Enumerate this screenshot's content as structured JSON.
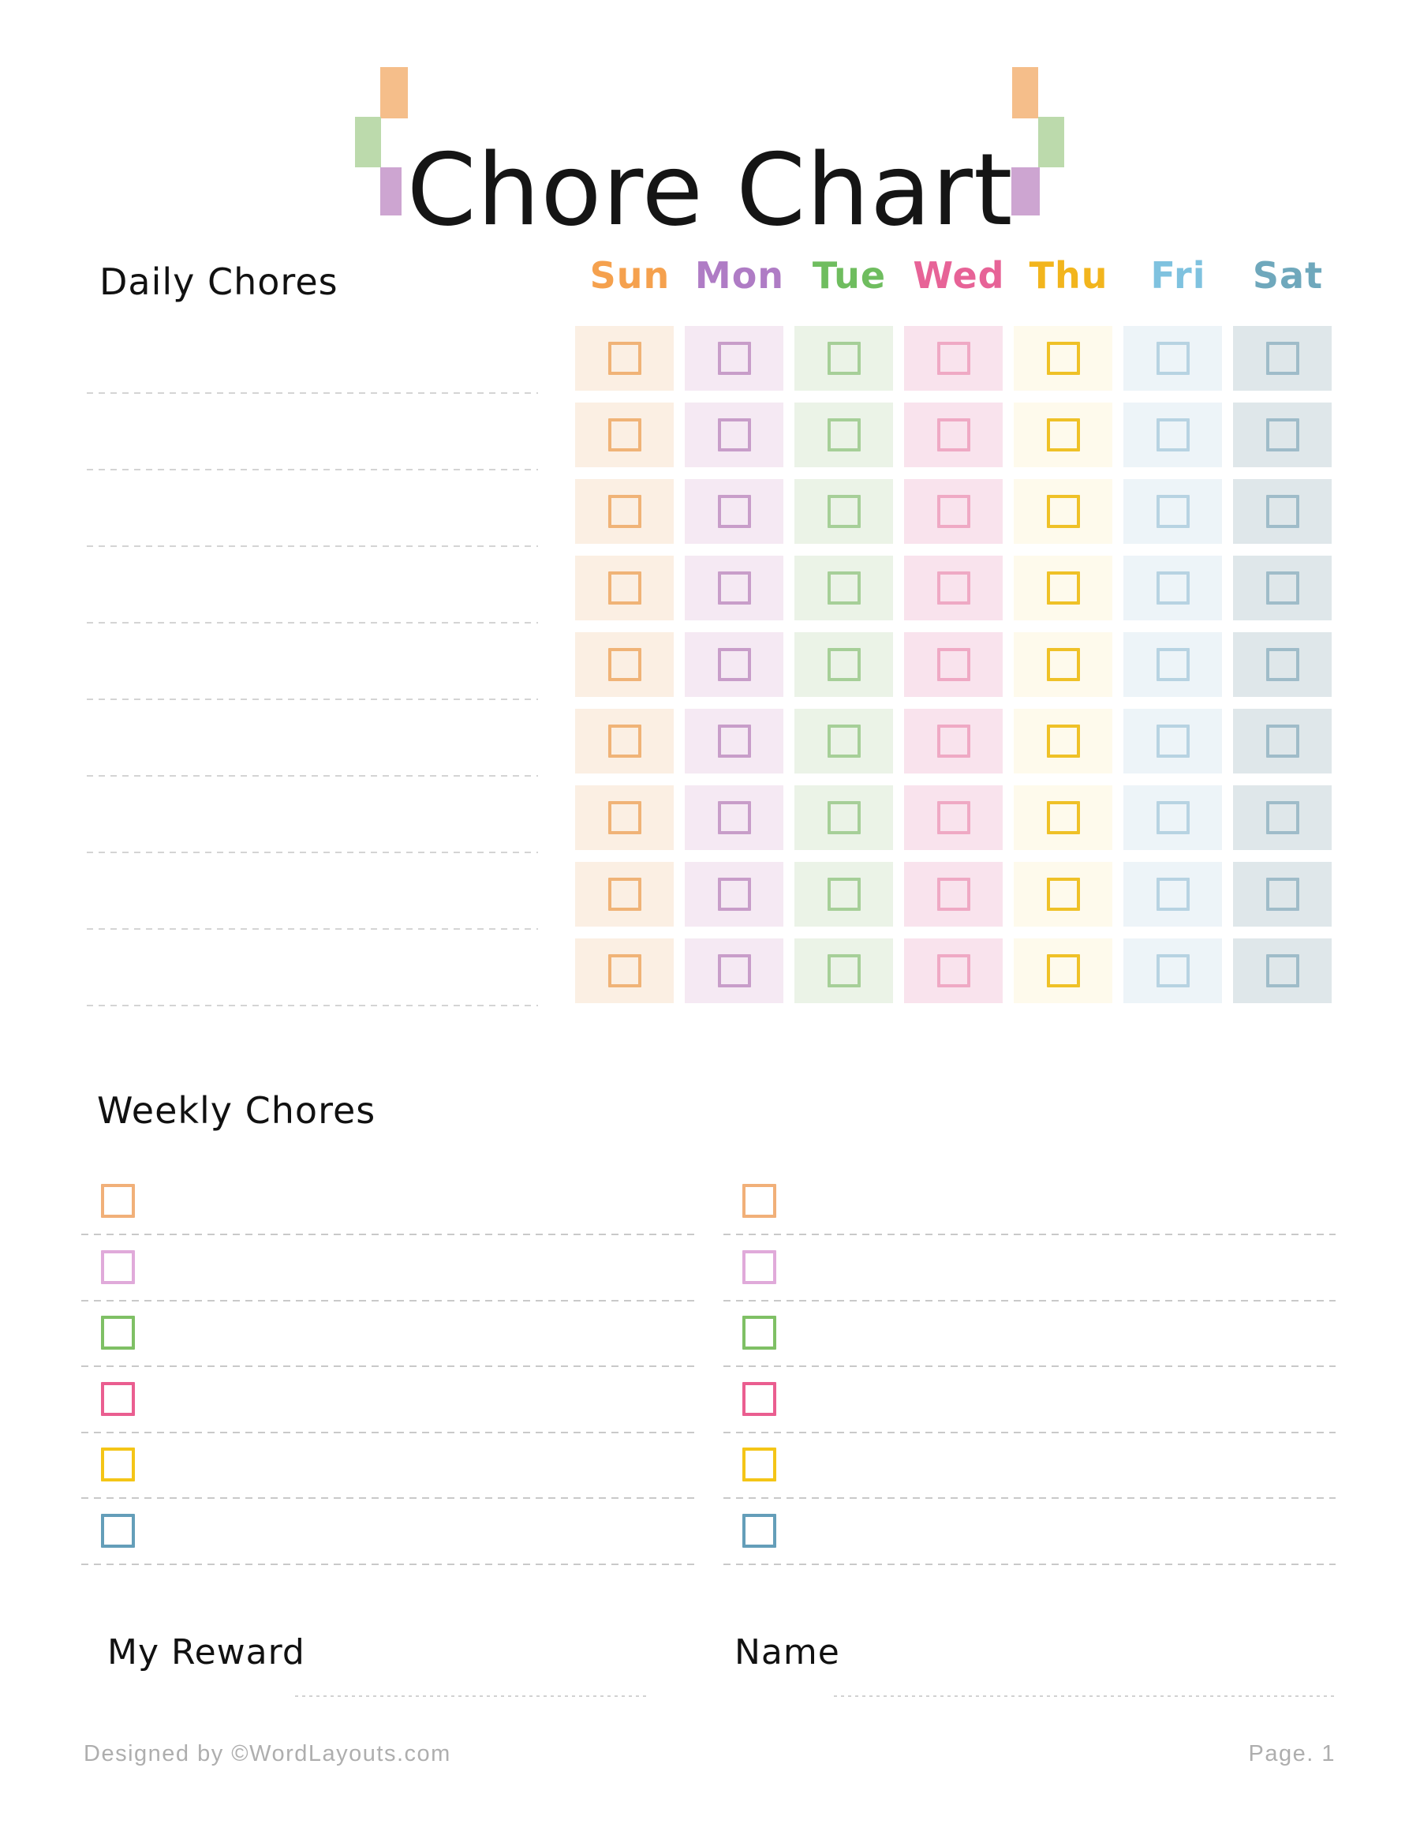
{
  "page": {
    "title": "Chore Chart",
    "footer_left": "Designed by ©WordLayouts.com",
    "footer_right": "Page. 1"
  },
  "decoration": {
    "orange": "#f5be8a",
    "green": "#bcdaac",
    "purple": "#cda5d1"
  },
  "daily": {
    "heading": "Daily Chores",
    "rows": 9,
    "line_count": 9,
    "days": [
      {
        "label": "Sun",
        "label_color": "#f5a14e",
        "cell_bg": "#fbefe3",
        "box_color": "#f0b377"
      },
      {
        "label": "Mon",
        "label_color": "#af7cc5",
        "cell_bg": "#f5e9f3",
        "box_color": "#c89dc9"
      },
      {
        "label": "Tue",
        "label_color": "#6fbd5f",
        "cell_bg": "#ebf3e7",
        "box_color": "#a6cf98"
      },
      {
        "label": "Wed",
        "label_color": "#e76397",
        "cell_bg": "#f9e3ed",
        "box_color": "#efa9c4"
      },
      {
        "label": "Thu",
        "label_color": "#f2b51d",
        "cell_bg": "#fefaec",
        "box_color": "#efc127"
      },
      {
        "label": "Fri",
        "label_color": "#7fc2df",
        "cell_bg": "#edf4f8",
        "box_color": "#b7d3e2"
      },
      {
        "label": "Sat",
        "label_color": "#6fa8bc",
        "cell_bg": "#dfe7ea",
        "box_color": "#9fbcc9"
      }
    ]
  },
  "weekly": {
    "heading": "Weekly Chores",
    "columns": 2,
    "rows_per_column": 6,
    "box_colors": [
      "#f1b079",
      "#e0aada",
      "#7fc065",
      "#ea5e90",
      "#f4c517",
      "#649eb9"
    ]
  },
  "fields": {
    "reward_label": "My Reward",
    "name_label": "Name"
  },
  "line_color": "#c9c9c9"
}
